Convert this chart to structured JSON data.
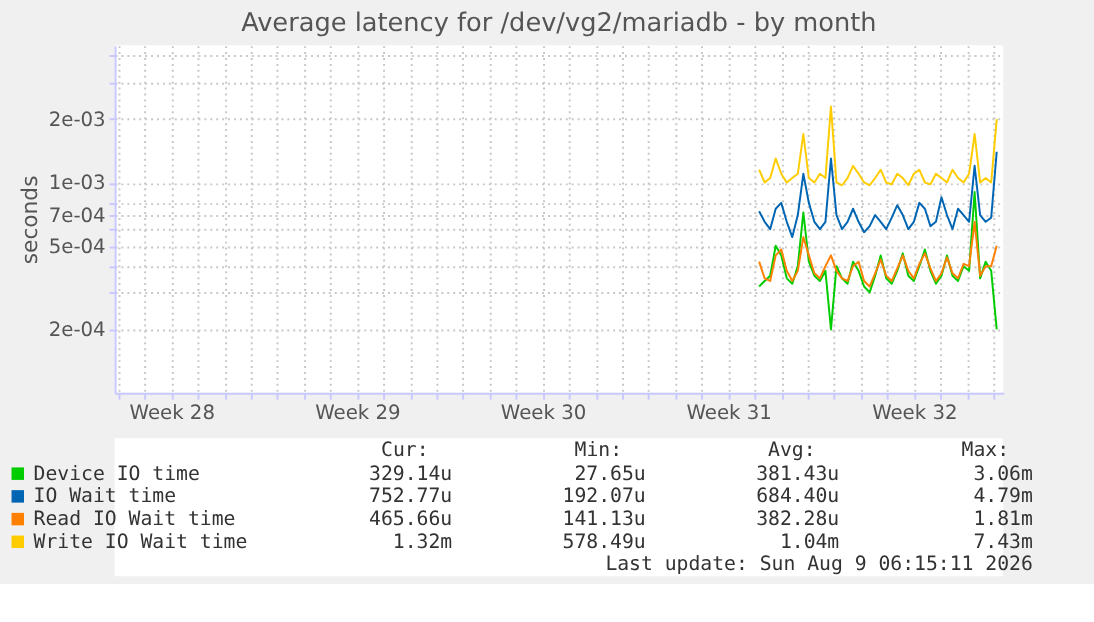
{
  "chart_data": {
    "type": "line",
    "title": "Average latency for /dev/vg2/mariadb - by month",
    "ylabel": "seconds",
    "log": "y",
    "grid": true,
    "legend": "bottom",
    "marker": "none",
    "line_style": "solid",
    "xlim": [
      "2026-07-06T20:40",
      "2026-08-09T08:50"
    ],
    "ylim": [
      0.0001,
      0.0045
    ],
    "yticks": [
      {
        "value": 0.0002,
        "label": "2e-04"
      },
      {
        "value": 0.0003,
        "label": null
      },
      {
        "value": 0.0004,
        "label": null
      },
      {
        "value": 0.0005,
        "label": "5e-04"
      },
      {
        "value": 0.0006,
        "label": null
      },
      {
        "value": 0.0007,
        "label": "7e-04"
      },
      {
        "value": 0.0008,
        "label": null
      },
      {
        "value": 0.001,
        "label": "1e-03"
      },
      {
        "value": 0.002,
        "label": "2e-03"
      },
      {
        "value": 0.003,
        "label": null
      },
      {
        "value": 0.004,
        "label": null
      }
    ],
    "xticks": [
      {
        "value": "2026-07-07",
        "label": null
      },
      {
        "value": "2026-07-08",
        "label": null
      },
      {
        "value": "2026-07-09",
        "label": "Week 28"
      },
      {
        "value": "2026-07-10",
        "label": null
      },
      {
        "value": "2026-07-11",
        "label": null
      },
      {
        "value": "2026-07-12",
        "label": null
      },
      {
        "value": "2026-07-13",
        "label": null
      },
      {
        "value": "2026-07-14",
        "label": null
      },
      {
        "value": "2026-07-15",
        "label": null
      },
      {
        "value": "2026-07-16",
        "label": "Week 29"
      },
      {
        "value": "2026-07-17",
        "label": null
      },
      {
        "value": "2026-07-18",
        "label": null
      },
      {
        "value": "2026-07-19",
        "label": null
      },
      {
        "value": "2026-07-20",
        "label": null
      },
      {
        "value": "2026-07-21",
        "label": null
      },
      {
        "value": "2026-07-22",
        "label": null
      },
      {
        "value": "2026-07-23",
        "label": "Week 30"
      },
      {
        "value": "2026-07-24",
        "label": null
      },
      {
        "value": "2026-07-25",
        "label": null
      },
      {
        "value": "2026-07-26",
        "label": null
      },
      {
        "value": "2026-07-27",
        "label": null
      },
      {
        "value": "2026-07-28",
        "label": null
      },
      {
        "value": "2026-07-29",
        "label": null
      },
      {
        "value": "2026-07-30",
        "label": "Week 31"
      },
      {
        "value": "2026-07-31",
        "label": null
      },
      {
        "value": "2026-08-01",
        "label": null
      },
      {
        "value": "2026-08-02",
        "label": null
      },
      {
        "value": "2026-08-03",
        "label": null
      },
      {
        "value": "2026-08-04",
        "label": null
      },
      {
        "value": "2026-08-05",
        "label": null
      },
      {
        "value": "2026-08-06",
        "label": "Week 32"
      },
      {
        "value": "2026-08-07",
        "label": null
      },
      {
        "value": "2026-08-08",
        "label": null
      },
      {
        "value": "2026-08-09",
        "label": null
      }
    ],
    "x": [
      "2026-07-31T04:00",
      "2026-07-31T09:00",
      "2026-07-31T14:00",
      "2026-07-31T19:00",
      "2026-08-01T00:00",
      "2026-08-01T05:00",
      "2026-08-01T10:00",
      "2026-08-01T15:00",
      "2026-08-01T20:00",
      "2026-08-02T01:00",
      "2026-08-02T06:00",
      "2026-08-02T11:00",
      "2026-08-02T16:00",
      "2026-08-02T21:00",
      "2026-08-03T02:00",
      "2026-08-03T07:00",
      "2026-08-03T12:00",
      "2026-08-03T17:00",
      "2026-08-03T22:00",
      "2026-08-04T03:00",
      "2026-08-04T08:00",
      "2026-08-04T13:00",
      "2026-08-04T18:00",
      "2026-08-04T23:00",
      "2026-08-05T04:00",
      "2026-08-05T09:00",
      "2026-08-05T14:00",
      "2026-08-05T19:00",
      "2026-08-06T00:00",
      "2026-08-06T05:00",
      "2026-08-06T10:00",
      "2026-08-06T15:00",
      "2026-08-06T20:00",
      "2026-08-07T01:00",
      "2026-08-07T06:00",
      "2026-08-07T11:00",
      "2026-08-07T16:00",
      "2026-08-07T21:00",
      "2026-08-08T02:00",
      "2026-08-08T07:00",
      "2026-08-08T12:00",
      "2026-08-08T17:00",
      "2026-08-08T22:00",
      "2026-08-09T03:00"
    ],
    "series": [
      {
        "name": "Device IO time",
        "color": "#00cc00",
        "values": [
          0.00032,
          0.00034,
          0.00036,
          0.0005,
          0.00045,
          0.00035,
          0.00033,
          0.0004,
          0.00072,
          0.00042,
          0.00036,
          0.00034,
          0.00038,
          0.0002,
          0.0004,
          0.00035,
          0.00033,
          0.00042,
          0.00038,
          0.00032,
          0.0003,
          0.00036,
          0.00045,
          0.00035,
          0.00033,
          0.00038,
          0.00046,
          0.00036,
          0.00034,
          0.0004,
          0.00048,
          0.00038,
          0.00033,
          0.00036,
          0.00045,
          0.00036,
          0.00034,
          0.0004,
          0.00038,
          0.0009,
          0.00035,
          0.00042,
          0.00038,
          0.0002
        ]
      },
      {
        "name": "IO Wait time",
        "color": "#0066b3",
        "values": [
          0.00073,
          0.00065,
          0.0006,
          0.00075,
          0.0008,
          0.00065,
          0.00055,
          0.0007,
          0.0011,
          0.0008,
          0.00065,
          0.0006,
          0.00065,
          0.0013,
          0.0007,
          0.0006,
          0.00065,
          0.00075,
          0.00065,
          0.00058,
          0.00062,
          0.0007,
          0.00065,
          0.0006,
          0.00068,
          0.00078,
          0.0007,
          0.0006,
          0.00065,
          0.0008,
          0.00075,
          0.00062,
          0.00065,
          0.00085,
          0.0007,
          0.0006,
          0.00075,
          0.0007,
          0.00065,
          0.0012,
          0.0007,
          0.00065,
          0.00068,
          0.0014
        ]
      },
      {
        "name": "Read IO Wait time",
        "color": "#ff8000",
        "values": [
          0.00042,
          0.00035,
          0.00034,
          0.00045,
          0.00048,
          0.00038,
          0.00034,
          0.00038,
          0.00055,
          0.00045,
          0.00037,
          0.00035,
          0.0004,
          0.00045,
          0.00038,
          0.00035,
          0.00034,
          0.0004,
          0.00042,
          0.00034,
          0.00032,
          0.00037,
          0.00043,
          0.00036,
          0.00034,
          0.00039,
          0.00045,
          0.00038,
          0.00035,
          0.00041,
          0.00046,
          0.00039,
          0.00034,
          0.00037,
          0.00044,
          0.00037,
          0.00035,
          0.00041,
          0.0004,
          0.00065,
          0.00036,
          0.0004,
          0.0004,
          0.0005
        ]
      },
      {
        "name": "Write IO Wait time",
        "color": "#ffcc00",
        "values": [
          0.00115,
          0.001,
          0.00105,
          0.0013,
          0.0011,
          0.001,
          0.00105,
          0.0011,
          0.0017,
          0.00105,
          0.001,
          0.0011,
          0.00105,
          0.0023,
          0.001,
          0.00097,
          0.00105,
          0.0012,
          0.0011,
          0.001,
          0.00097,
          0.00105,
          0.00115,
          0.001,
          0.00098,
          0.0011,
          0.00105,
          0.00097,
          0.0011,
          0.00115,
          0.001,
          0.00098,
          0.0011,
          0.00105,
          0.001,
          0.00115,
          0.00105,
          0.001,
          0.0011,
          0.0017,
          0.001,
          0.00105,
          0.001,
          0.002
        ]
      }
    ],
    "annotations": [
      "Cur:",
      "Min:",
      "Avg:",
      "Max:",
      "329.14u",
      "27.65u",
      "381.43u",
      "3.06m",
      "752.77u",
      "192.07u",
      "684.40u",
      "4.79m",
      "465.66u",
      "141.13u",
      "382.28u",
      "1.81m",
      "1.32m",
      "578.49u",
      "1.04m",
      "7.43m",
      "Last update: Sun Aug  9 06:15:11 2026"
    ]
  }
}
